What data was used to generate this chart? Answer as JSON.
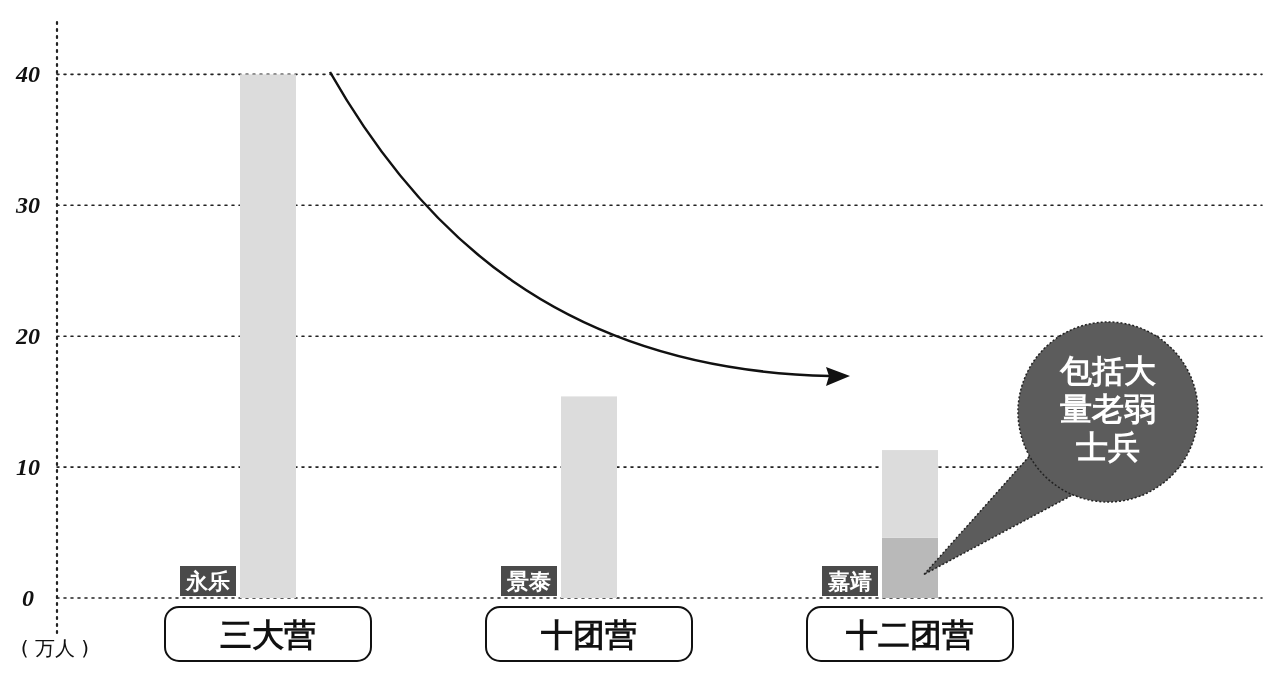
{
  "chart_data": {
    "type": "bar",
    "stacked": true,
    "categories": [
      "三大营",
      "十团营",
      "十二团营"
    ],
    "series": [
      {
        "color": "#b9b9b9",
        "values": [
          null,
          null,
          4.6
        ]
      },
      {
        "color": "#dcdcdc",
        "values": [
          40,
          15.4,
          6.7
        ]
      }
    ],
    "ylabel": "( 万人 )",
    "ylim": [
      0,
      44
    ],
    "yticks": [
      0,
      10,
      20,
      30,
      40
    ],
    "grid": "y",
    "line_style": "dotted",
    "annotations": [
      {
        "text": "永乐",
        "x": "三大营",
        "y": 0
      },
      {
        "text": "景泰",
        "x": "十团营",
        "y": 0
      },
      {
        "text": "嘉靖",
        "x": "十二团营",
        "y": 0
      },
      "包括大量老弱士兵"
    ]
  }
}
